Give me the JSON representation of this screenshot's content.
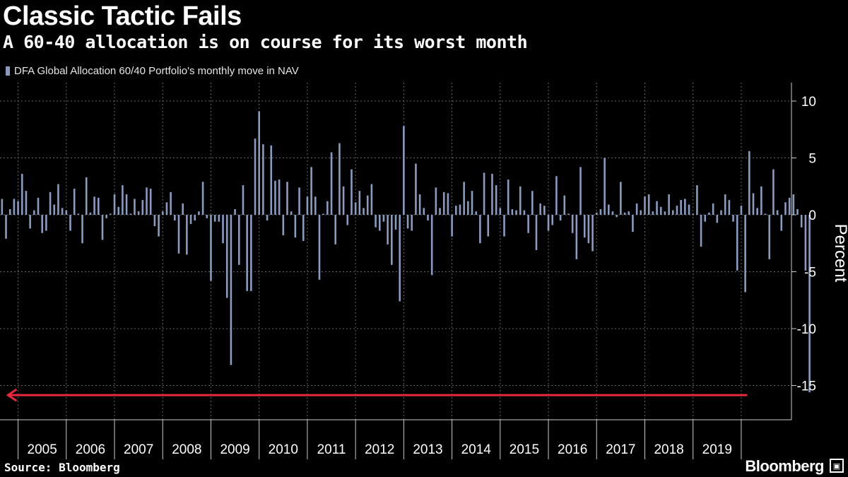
{
  "header": {
    "title": "Classic Tactic Fails",
    "subtitle": "A 60-40 allocation is on course for its worst month"
  },
  "footer": {
    "source": "Source: Bloomberg",
    "brand": "Bloomberg"
  },
  "colors": {
    "background": "#000000",
    "bar": "#8a9bc0",
    "grid": "#666666",
    "axis": "#cccccc",
    "arrow": "#e8283c"
  },
  "chart_data": {
    "type": "bar",
    "title": "Classic Tactic Fails",
    "subtitle": "A 60-40 allocation is on course for its worst month",
    "legend": "DFA Global Allocation 60/40 Portfolio's monthly move in NAV",
    "legend_position": "top-left",
    "ylabel": "Percent",
    "xlabel": "",
    "ylim": [
      -18,
      11.5
    ],
    "yticks": [
      10,
      5,
      0,
      -5,
      -10,
      -15
    ],
    "y_axis_side": "right",
    "grid": true,
    "start": "2004-08",
    "xlim_months": [
      0,
      197
    ],
    "years": [
      "2005",
      "2006",
      "2007",
      "2008",
      "2009",
      "2010",
      "2011",
      "2012",
      "2013",
      "2014",
      "2015",
      "2016",
      "2017",
      "2018",
      "2019"
    ],
    "annotation": {
      "type": "arrow",
      "direction": "left",
      "value": -15.6,
      "from_month": 186,
      "to_month": 2
    },
    "values": [
      1.4,
      -2.1,
      0.5,
      1.4,
      1.2,
      3.6,
      2.1,
      -1.2,
      0.4,
      1.5,
      -1.6,
      -1.4,
      2.0,
      0.9,
      2.7,
      0.6,
      0.4,
      -1.4,
      2.3,
      0.1,
      -2.5,
      3.3,
      0.2,
      1.6,
      1.5,
      -2.2,
      -0.3,
      0.1,
      1.8,
      0.7,
      2.6,
      1.8,
      0.1,
      1.4,
      0.3,
      1.3,
      2.4,
      2.3,
      -1.0,
      -1.9,
      0.3,
      1.1,
      2.0,
      -0.5,
      -3.4,
      1.0,
      -3.5,
      -0.8,
      -0.5,
      0.3,
      2.9,
      -0.3,
      -5.8,
      -0.6,
      -0.6,
      -2.5,
      -7.3,
      -13.2,
      0.5,
      -4.4,
      2.6,
      -6.7,
      -6.7,
      6.7,
      9.1,
      6.2,
      -0.5,
      6.1,
      3.0,
      3.1,
      -1.8,
      2.9,
      0.3,
      -2.0,
      2.4,
      -2.3,
      1.6,
      4.2,
      1.6,
      -5.7,
      0.1,
      1.2,
      5.5,
      -2.6,
      6.3,
      2.5,
      -0.9,
      4.0,
      1.1,
      2.1,
      0.6,
      1.7,
      2.7,
      -1.1,
      -1.4,
      -0.6,
      -2.6,
      -4.4,
      -1.3,
      -7.6,
      7.8,
      -1.2,
      -1.4,
      4.5,
      1.8,
      0.6,
      -0.5,
      -5.3,
      2.4,
      0.6,
      2.0,
      1.9,
      -1.9,
      0.8,
      0.9,
      2.9,
      1.2,
      2.1,
      0.3,
      -2.5,
      3.7,
      -1.9,
      3.6,
      2.6,
      0.6,
      -1.9,
      3.1,
      0.5,
      0.4,
      2.5,
      0.4,
      -1.6,
      2.1,
      -3.1,
      1.0,
      0.8,
      -1.4,
      -0.9,
      3.4,
      -0.5,
      1.7,
      0.1,
      -1.6,
      -3.9,
      4.2,
      -2.0,
      -2.5,
      -3.2,
      0.2,
      0.5,
      5.0,
      0.9,
      0.3,
      -0.2,
      2.9,
      0.2,
      0.3,
      -1.5,
      1.0,
      0.4,
      1.6,
      1.8,
      0.3,
      1.2,
      0.7,
      0.3,
      1.8,
      0.4,
      0.8,
      1.3,
      1.4,
      0.9,
      0.1,
      2.6,
      -2.8,
      -0.6,
      0.2,
      1.0,
      -0.7,
      0.4,
      1.8,
      1.3,
      -0.6,
      -4.9,
      0.8,
      -6.8,
      5.6,
      1.9,
      0.6,
      2.5,
      0.1,
      -3.9,
      4.0,
      0.4,
      -1.4,
      1.1,
      1.5,
      1.8,
      0.5,
      -1.1,
      -4.9,
      -15.6
    ]
  }
}
